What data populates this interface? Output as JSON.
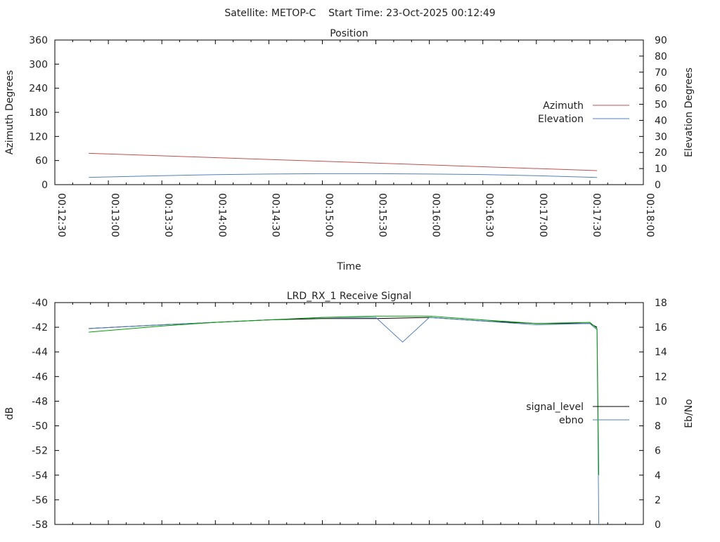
{
  "header": "Satellite: METOP-C    Start Time: 23-Oct-2025 00:12:49",
  "chart_data": [
    {
      "type": "line",
      "title": "Position",
      "xlabel": "Time",
      "ylabel": "Azimuth Degrees",
      "y2label": "Elevation Degrees",
      "xlim": [
        "00:12:30",
        "00:18:00"
      ],
      "ylim": [
        0,
        360
      ],
      "y2lim": [
        0,
        90
      ],
      "xticks": [
        "00:12:30",
        "00:13:00",
        "00:13:30",
        "00:14:00",
        "00:14:30",
        "00:15:00",
        "00:15:30",
        "00:16:00",
        "00:16:30",
        "00:17:00",
        "00:17:30",
        "00:18:00"
      ],
      "yticks": [
        "0",
        "60",
        "120",
        "180",
        "240",
        "300",
        "360"
      ],
      "y2ticks": [
        "0",
        "10",
        "20",
        "30",
        "40",
        "50",
        "60",
        "70",
        "80",
        "90"
      ],
      "legend_position": "right",
      "series": [
        {
          "name": "Azimuth",
          "axis": "y",
          "color": "#c0504d",
          "x": [
            "00:12:49",
            "00:17:34"
          ],
          "values": [
            78,
            35
          ]
        },
        {
          "name": "Elevation",
          "axis": "y2",
          "color": "#4f81bd",
          "x": [
            "00:12:49",
            "00:13:30",
            "00:14:00",
            "00:14:30",
            "00:15:00",
            "00:15:30",
            "00:16:00",
            "00:16:30",
            "00:17:00",
            "00:17:34"
          ],
          "values": [
            4.5,
            5.6,
            6.2,
            6.6,
            6.8,
            6.8,
            6.6,
            6.3,
            5.6,
            4.5
          ]
        }
      ]
    },
    {
      "type": "line",
      "title": "LRD_RX_1 Receive Signal",
      "ylabel": "dB",
      "y2label": "Eb/No",
      "xlim": [
        "00:12:30",
        "00:18:00"
      ],
      "ylim": [
        -58,
        -40
      ],
      "y2lim": [
        0,
        18
      ],
      "yticks": [
        "-40",
        "-42",
        "-44",
        "-46",
        "-48",
        "-50",
        "-52",
        "-54",
        "-56",
        "-58"
      ],
      "y2ticks": [
        "18",
        "16",
        "14",
        "12",
        "10",
        "8",
        "6",
        "4",
        "2",
        "0"
      ],
      "legend_position": "right",
      "series": [
        {
          "name": "signal_level",
          "axis": "y",
          "color": "#000000",
          "x": [
            "00:12:49",
            "00:13:30",
            "00:14:00",
            "00:14:30",
            "00:15:00",
            "00:15:30",
            "00:16:00",
            "00:16:30",
            "00:17:00",
            "00:17:30",
            "00:17:34"
          ],
          "values": [
            -42.1,
            -41.8,
            -41.6,
            -41.4,
            -41.3,
            -41.3,
            -41.2,
            -41.5,
            -41.7,
            -41.7,
            -42.0
          ]
        },
        {
          "name": "ebno",
          "axis": "y2",
          "color": "#4f81bd",
          "x": [
            "00:12:49",
            "00:13:30",
            "00:14:00",
            "00:14:30",
            "00:15:00",
            "00:15:30",
            "00:15:45",
            "00:16:00",
            "00:16:30",
            "00:17:00",
            "00:17:30",
            "00:17:34",
            "00:17:35"
          ],
          "values": [
            15.9,
            16.2,
            16.4,
            16.6,
            16.8,
            16.8,
            14.8,
            16.8,
            16.5,
            16.2,
            16.3,
            15.8,
            0
          ]
        },
        {
          "name": "",
          "axis": "y2",
          "color": "#00a000",
          "x": [
            "00:12:49",
            "00:13:30",
            "00:14:00",
            "00:14:30",
            "00:15:00",
            "00:15:30",
            "00:16:00",
            "00:16:30",
            "00:17:00",
            "00:17:30",
            "00:17:34",
            "00:17:35"
          ],
          "values": [
            15.6,
            16.1,
            16.4,
            16.6,
            16.8,
            16.9,
            16.9,
            16.6,
            16.3,
            16.4,
            15.9,
            4.0
          ]
        }
      ]
    }
  ]
}
